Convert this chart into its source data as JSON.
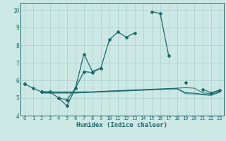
{
  "xlabel": "Humidex (Indice chaleur)",
  "xlim": [
    -0.5,
    23.5
  ],
  "ylim": [
    4.0,
    10.4
  ],
  "yticks": [
    4,
    5,
    6,
    7,
    8,
    9,
    10
  ],
  "xtick_labels": [
    "0",
    "1",
    "2",
    "3",
    "4",
    "5",
    "6",
    "7",
    "8",
    "9",
    "10",
    "11",
    "12",
    "13",
    "14",
    "15",
    "16",
    "17",
    "18",
    "19",
    "20",
    "21",
    "22",
    "23"
  ],
  "background_color": "#cce8e5",
  "grid_color": "#aacfcb",
  "line_color": "#1a6b6b",
  "line1": [
    5.8,
    5.55,
    5.35,
    5.35,
    5.0,
    4.55,
    5.55,
    7.5,
    6.5,
    6.7,
    8.3,
    8.75,
    8.45,
    8.7,
    null,
    9.9,
    9.8,
    7.4,
    null,
    5.9,
    null,
    5.5,
    5.3,
    5.45
  ],
  "line2": [
    5.8,
    null,
    5.35,
    null,
    5.0,
    4.9,
    5.55,
    6.5,
    6.45,
    6.7,
    null,
    null,
    null,
    null,
    null,
    null,
    null,
    null,
    null,
    null,
    null,
    null,
    null,
    null
  ],
  "line3": [
    5.75,
    null,
    5.35,
    5.35,
    5.35,
    5.35,
    5.35,
    5.35,
    5.35,
    5.38,
    5.4,
    5.42,
    5.44,
    5.46,
    5.48,
    5.5,
    5.52,
    5.54,
    5.56,
    5.58,
    5.56,
    5.3,
    5.25,
    5.4
  ],
  "line4": [
    5.75,
    null,
    5.3,
    5.3,
    5.3,
    5.3,
    5.3,
    5.32,
    5.34,
    5.36,
    5.38,
    5.4,
    5.42,
    5.44,
    5.46,
    5.48,
    5.5,
    5.52,
    5.54,
    5.3,
    5.28,
    5.22,
    5.18,
    5.35
  ],
  "line5": [
    5.75,
    null,
    5.28,
    5.28,
    5.28,
    5.28,
    5.28,
    5.3,
    5.32,
    5.34,
    5.36,
    5.38,
    5.4,
    5.42,
    5.44,
    5.46,
    5.48,
    5.5,
    5.52,
    5.25,
    5.23,
    5.18,
    5.15,
    5.32
  ]
}
